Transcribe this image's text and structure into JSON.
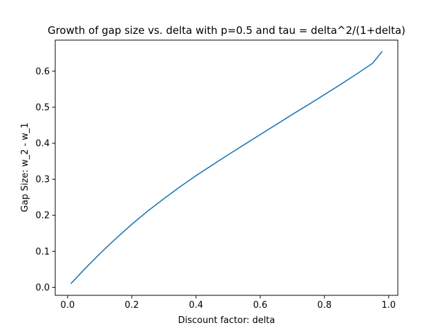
{
  "chart_data": {
    "type": "line",
    "title": "Growth of gap size vs. delta with p=0.5 and tau = delta^2/(1+delta)",
    "xlabel": "Discount factor: delta",
    "ylabel": "Gap Size: w_2 - w_1",
    "xlim": [
      -0.0385,
      1.0285
    ],
    "ylim": [
      -0.0223,
      0.6863
    ],
    "xticks": [
      {
        "value": 0.0,
        "label": "0.0"
      },
      {
        "value": 0.2,
        "label": "0.2"
      },
      {
        "value": 0.4,
        "label": "0.4"
      },
      {
        "value": 0.6,
        "label": "0.6"
      },
      {
        "value": 0.8,
        "label": "0.8"
      },
      {
        "value": 1.0,
        "label": "1.0"
      }
    ],
    "yticks": [
      {
        "value": 0.0,
        "label": "0.0"
      },
      {
        "value": 0.1,
        "label": "0.1"
      },
      {
        "value": 0.2,
        "label": "0.2"
      },
      {
        "value": 0.3,
        "label": "0.3"
      },
      {
        "value": 0.4,
        "label": "0.4"
      },
      {
        "value": 0.5,
        "label": "0.5"
      },
      {
        "value": 0.6,
        "label": "0.6"
      }
    ],
    "grid": false,
    "series": [
      {
        "color": "#1f77b4",
        "x": [
          0.01,
          0.05,
          0.1,
          0.15,
          0.2,
          0.25,
          0.3,
          0.35,
          0.4,
          0.45,
          0.5,
          0.55,
          0.6,
          0.65,
          0.7,
          0.75,
          0.8,
          0.85,
          0.9,
          0.95,
          0.98
        ],
        "y": [
          0.01,
          0.048,
          0.093,
          0.135,
          0.175,
          0.212,
          0.246,
          0.279,
          0.31,
          0.339,
          0.368,
          0.396,
          0.424,
          0.452,
          0.48,
          0.507,
          0.535,
          0.563,
          0.592,
          0.622,
          0.655
        ]
      }
    ]
  }
}
